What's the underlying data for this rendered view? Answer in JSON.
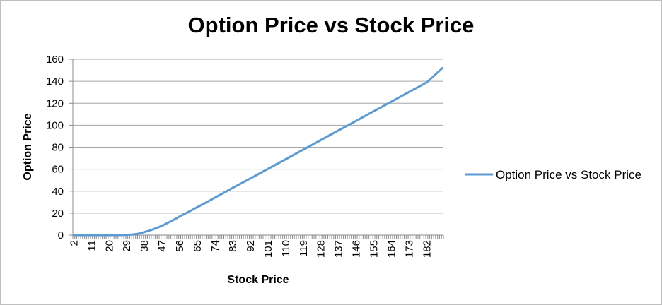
{
  "chart_data": {
    "type": "line",
    "title": "Option Price vs Stock Price",
    "xlabel": "Stock Price",
    "ylabel": "Option Price",
    "ylim": [
      0,
      160
    ],
    "yticks": [
      0,
      20,
      40,
      60,
      80,
      100,
      120,
      140,
      160
    ],
    "x_start": 2,
    "x_end": 190,
    "xtick_labels": [
      "2",
      "11",
      "20",
      "29",
      "38",
      "47",
      "56",
      "65",
      "74",
      "83",
      "92",
      "101",
      "110",
      "119",
      "128",
      "137",
      "146",
      "155",
      "164",
      "173",
      "182"
    ],
    "grid": true,
    "legend_position": "right",
    "series": [
      {
        "name": "Option Price vs Stock Price",
        "color": "#5b9bd5",
        "points": [
          [
            2,
            0
          ],
          [
            11,
            0
          ],
          [
            20,
            0
          ],
          [
            25,
            0
          ],
          [
            29,
            0.2
          ],
          [
            32,
            0.6
          ],
          [
            35,
            1.3
          ],
          [
            38,
            2.8
          ],
          [
            41,
            4.4
          ],
          [
            44,
            6.3
          ],
          [
            47,
            8.6
          ],
          [
            50,
            11.2
          ],
          [
            53,
            14.0
          ],
          [
            56,
            17.0
          ],
          [
            60,
            20.7
          ],
          [
            65,
            25.5
          ],
          [
            70,
            30.2
          ],
          [
            74,
            34.2
          ],
          [
            80,
            40.0
          ],
          [
            83,
            43.0
          ],
          [
            90,
            49.6
          ],
          [
            92,
            51.5
          ],
          [
            101,
            60.3
          ],
          [
            110,
            69.0
          ],
          [
            119,
            77.8
          ],
          [
            128,
            86.5
          ],
          [
            137,
            95.3
          ],
          [
            146,
            104.0
          ],
          [
            155,
            112.8
          ],
          [
            164,
            121.5
          ],
          [
            173,
            130.3
          ],
          [
            182,
            139.0
          ],
          [
            190,
            152.0
          ]
        ]
      }
    ]
  }
}
